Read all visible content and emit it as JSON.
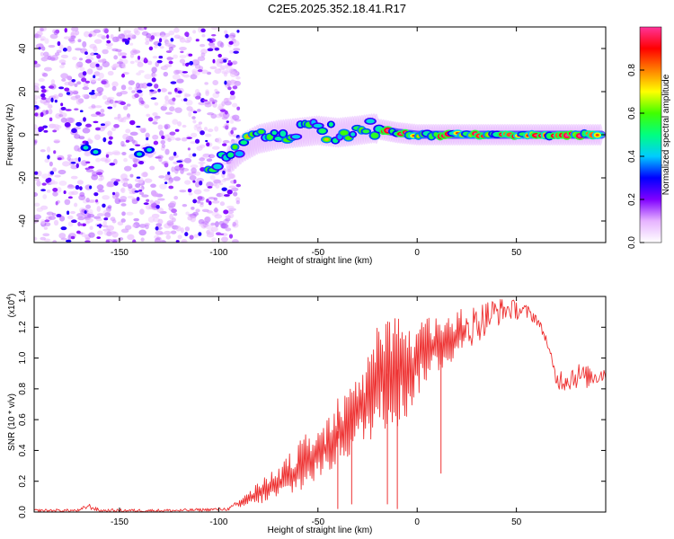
{
  "figure_title": "C2E5.2025.352.18.41.R17",
  "chart_data": [
    {
      "type": "heatmap",
      "title": "C2E5.2025.352.18.41.R17",
      "xlabel": "Height of straight line (km)",
      "ylabel": "Frequency (Hz)",
      "xlim": [
        -193,
        95
      ],
      "ylim": [
        -50,
        50
      ],
      "xticks": [
        -150,
        -100,
        -50,
        0,
        50
      ],
      "xtick_labels": [
        "-150",
        "-100",
        "-50",
        "0",
        "50"
      ],
      "yticks": [
        -40,
        -20,
        0,
        20,
        40
      ],
      "ytick_labels": [
        "-40",
        "-20",
        "0",
        "20",
        "40"
      ],
      "noise_region_x": [
        -193,
        -90
      ],
      "trace": {
        "description": "frequency centroid of the signal ridge",
        "x": [
          -170,
          -160,
          -140,
          -105,
          -95,
          -88,
          -80,
          -70,
          -60,
          -50,
          -40,
          -30,
          -22,
          -10,
          0,
          20,
          40,
          60,
          80,
          93
        ],
        "y": [
          -7,
          -8,
          -9,
          -14,
          -12,
          -6,
          -2,
          0,
          1,
          2,
          1,
          2,
          3,
          1,
          0,
          0,
          0,
          0,
          0,
          0
        ]
      },
      "colorbar": {
        "label": "Normalized spectral amplitude",
        "range": [
          0.0,
          1.0
        ],
        "ticks": [
          0.0,
          0.2,
          0.4,
          0.6,
          0.8
        ],
        "tick_labels": [
          "0.0",
          "0.2",
          "0.4",
          "0.6",
          "0.8"
        ],
        "colors": [
          "#ffffff",
          "#e6b3ff",
          "#8000ff",
          "#0000ff",
          "#00ccff",
          "#00ff80",
          "#40ff00",
          "#ffff00",
          "#ff8000",
          "#ff0000",
          "#ff3399"
        ]
      }
    },
    {
      "type": "line",
      "xlabel": "Height of straight line (km)",
      "ylabel": "SNR (10 * v/v)",
      "exponent_label": "(x10",
      "exponent_sup": "4",
      "exponent_close": ")",
      "xlim": [
        -193,
        95
      ],
      "ylim": [
        0,
        1.4
      ],
      "xticks": [
        -150,
        -100,
        -50,
        0,
        50
      ],
      "xtick_labels": [
        "-150",
        "-100",
        "-50",
        "0",
        "50"
      ],
      "yticks": [
        0.0,
        0.2,
        0.4,
        0.6,
        0.8,
        1.0,
        1.2,
        1.4
      ],
      "ytick_labels": [
        "0.0",
        "0.2",
        "0.4",
        "0.6",
        "0.8",
        "1.0",
        "1.2",
        "1.4"
      ],
      "line_color": "#ee3333",
      "envelope_x": [
        -193,
        -170,
        -166,
        -160,
        -120,
        -95,
        -88,
        -80,
        -70,
        -60,
        -50,
        -45,
        -40,
        -35,
        -30,
        -25,
        -20,
        -15,
        -10,
        -5,
        0,
        5,
        10,
        15,
        20,
        25,
        30,
        35,
        40,
        45,
        50,
        55,
        60,
        65,
        70,
        75,
        80,
        85,
        90,
        95
      ],
      "envelope_low": [
        0.0,
        0.0,
        0.02,
        0.0,
        0.0,
        0.01,
        0.03,
        0.05,
        0.08,
        0.12,
        0.2,
        0.25,
        0.3,
        0.35,
        0.4,
        0.45,
        0.5,
        0.55,
        0.55,
        0.6,
        0.75,
        0.85,
        0.9,
        0.95,
        1.0,
        1.05,
        1.1,
        1.15,
        1.2,
        1.25,
        1.25,
        1.25,
        1.22,
        1.1,
        0.8,
        0.78,
        0.8,
        0.8,
        0.82,
        0.85
      ],
      "envelope_high": [
        0.02,
        0.02,
        0.06,
        0.02,
        0.02,
        0.03,
        0.1,
        0.2,
        0.3,
        0.45,
        0.6,
        0.6,
        0.75,
        0.8,
        0.9,
        1.05,
        1.2,
        1.25,
        1.3,
        1.25,
        1.2,
        1.3,
        1.3,
        1.25,
        1.3,
        1.35,
        1.35,
        1.38,
        1.4,
        1.38,
        1.38,
        1.35,
        1.3,
        1.15,
        0.92,
        0.95,
        0.98,
        0.95,
        0.95,
        0.95
      ],
      "dips_x": [
        -40,
        -33,
        -15,
        -10,
        0,
        12
      ],
      "dips_y": [
        0.02,
        0.05,
        0.05,
        0.02,
        0.9,
        0.25
      ]
    }
  ]
}
